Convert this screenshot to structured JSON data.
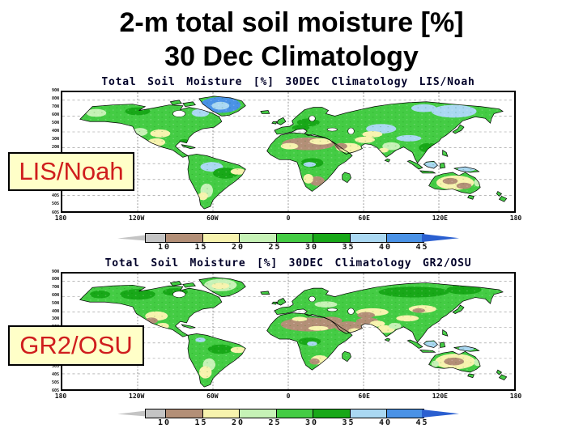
{
  "slide": {
    "title_line1": "2-m total soil moisture [%]",
    "title_line2": "30 Dec Climatology",
    "background_color": "#ffffff",
    "title_color": "#000000"
  },
  "palette": {
    "below_10_gray": "#c4c4c4",
    "bin_10_15_brown": "#b38f77",
    "bin_15_20_yellow": "#f7f3ae",
    "bin_20_25_palegreen": "#c6f2b6",
    "bin_25_30_green": "#44cc44",
    "bin_30_35_darkgreen": "#18a818",
    "bin_35_40_lightblue": "#aad8f2",
    "bin_40_45_blue": "#4a92e6",
    "above_45_darkblue": "#2a5fd0",
    "ocean": "#ffffff",
    "label_box_bg": "#ffffc8",
    "label_box_text": "#cf1d1d"
  },
  "colorbar_body_colors": [
    "#c4c4c4",
    "#b38f77",
    "#f7f3ae",
    "#c6f2b6",
    "#44cc44",
    "#18a818",
    "#aad8f2",
    "#4a92e6"
  ],
  "colorbar_arrow_colors": {
    "left": "#c4c4c4",
    "right": "#2a5fd0"
  },
  "panels": [
    {
      "id": "lis-noah",
      "map_title": "Total Soil Moisture [%] 30DEC Climatology LIS/Noah",
      "overlay_label": "LIS/Noah",
      "lat_labels": [
        "90N",
        "80N",
        "70N",
        "60N",
        "50N",
        "40N",
        "30N",
        "20N",
        "10N",
        "EQ",
        "10S",
        "20S",
        "30S",
        "40S",
        "50S",
        "60S"
      ],
      "lon_labels": [
        "180",
        "120W",
        "60W",
        "0",
        "60E",
        "120E",
        "180"
      ],
      "colorbar_labels": [
        "10",
        "15",
        "20",
        "25",
        "30",
        "35",
        "40",
        "45"
      ]
    },
    {
      "id": "gr2-osu",
      "map_title": "Total Soil Moisture [%] 30DEC Climatology GR2/OSU",
      "overlay_label": "GR2/OSU",
      "lat_labels": [
        "90N",
        "80N",
        "70N",
        "60N",
        "50N",
        "40N",
        "30N",
        "20N",
        "10N",
        "EQ",
        "10S",
        "20S",
        "30S",
        "40S",
        "50S",
        "60S"
      ],
      "lon_labels": [
        "180",
        "120W",
        "60W",
        "0",
        "60E",
        "120E",
        "180"
      ],
      "colorbar_labels": [
        "10",
        "15",
        "20",
        "25",
        "30",
        "35",
        "40",
        "45"
      ]
    }
  ],
  "chart_data": [
    {
      "type": "heatmap",
      "subtype": "global-map",
      "title": "Total Soil Moisture [%] 30DEC Climatology LIS/Noah",
      "units": "%",
      "projection": "equirectangular",
      "lon_range": [
        -180,
        180
      ],
      "lat_range": [
        -60,
        90
      ],
      "x_ticks": [
        "180",
        "120W",
        "60W",
        "0",
        "60E",
        "120E",
        "180"
      ],
      "y_ticks": [
        "90N",
        "80N",
        "70N",
        "60N",
        "50N",
        "40N",
        "30N",
        "20N",
        "10N",
        "EQ",
        "10S",
        "20S",
        "30S",
        "40S",
        "50S",
        "60S"
      ],
      "grid": "dashed, lon every 60 deg, lat every 20 deg",
      "colorbar": {
        "tick_labels": [
          10,
          15,
          20,
          25,
          30,
          35,
          40,
          45
        ],
        "open_ended": true,
        "colors": [
          "#c4c4c4",
          "#b38f77",
          "#f7f3ae",
          "#c6f2b6",
          "#44cc44",
          "#18a818",
          "#aad8f2",
          "#4a92e6",
          "#2a5fd0"
        ]
      },
      "regional_values": [
        {
          "region": "Greenland",
          "value": "40-45 (blue)"
        },
        {
          "region": "Eastern Siberia",
          "value": "35-40 (light blue patches)"
        },
        {
          "region": "Europe / mid-latitudes",
          "value": "25-35 (green)"
        },
        {
          "region": "Sahara / Arabia",
          "value": "10-20 (brown/tan)"
        },
        {
          "region": "Amazon basin",
          "value": "35-40 with 25-35 surround"
        },
        {
          "region": "Congo basin",
          "value": "30-40"
        },
        {
          "region": "Australia interior",
          "value": "10-20 (tan/brown)"
        },
        {
          "region": "Oceans",
          "value": "no data (white)"
        }
      ]
    },
    {
      "type": "heatmap",
      "subtype": "global-map",
      "title": "Total Soil Moisture [%] 30DEC Climatology GR2/OSU",
      "units": "%",
      "projection": "equirectangular",
      "lon_range": [
        -180,
        180
      ],
      "lat_range": [
        -60,
        90
      ],
      "x_ticks": [
        "180",
        "120W",
        "60W",
        "0",
        "60E",
        "120E",
        "180"
      ],
      "y_ticks": [
        "90N",
        "80N",
        "70N",
        "60N",
        "50N",
        "40N",
        "30N",
        "20N",
        "10N",
        "EQ",
        "10S",
        "20S",
        "30S",
        "40S",
        "50S",
        "60S"
      ],
      "grid": "dashed, lon every 60 deg, lat every 20 deg",
      "colorbar": {
        "tick_labels": [
          10,
          15,
          20,
          25,
          30,
          35,
          40,
          45
        ],
        "open_ended": true,
        "colors": [
          "#c4c4c4",
          "#b38f77",
          "#f7f3ae",
          "#c6f2b6",
          "#44cc44",
          "#18a818",
          "#aad8f2",
          "#4a92e6",
          "#2a5fd0"
        ]
      },
      "regional_values": [
        {
          "region": "Greenland",
          "value": "15-25 (pale yellow/green)"
        },
        {
          "region": "Canada / Siberia",
          "value": "25-35 (solid green)"
        },
        {
          "region": "Sahara / Middle East / Central Asia",
          "value": "10-15 (large brown mass)"
        },
        {
          "region": "US south / Mexico",
          "value": "10-20"
        },
        {
          "region": "Amazon basin",
          "value": "25-35"
        },
        {
          "region": "Australia",
          "value": "10-20, brown interior"
        },
        {
          "region": "Oceans",
          "value": "no data (white)"
        }
      ]
    }
  ]
}
